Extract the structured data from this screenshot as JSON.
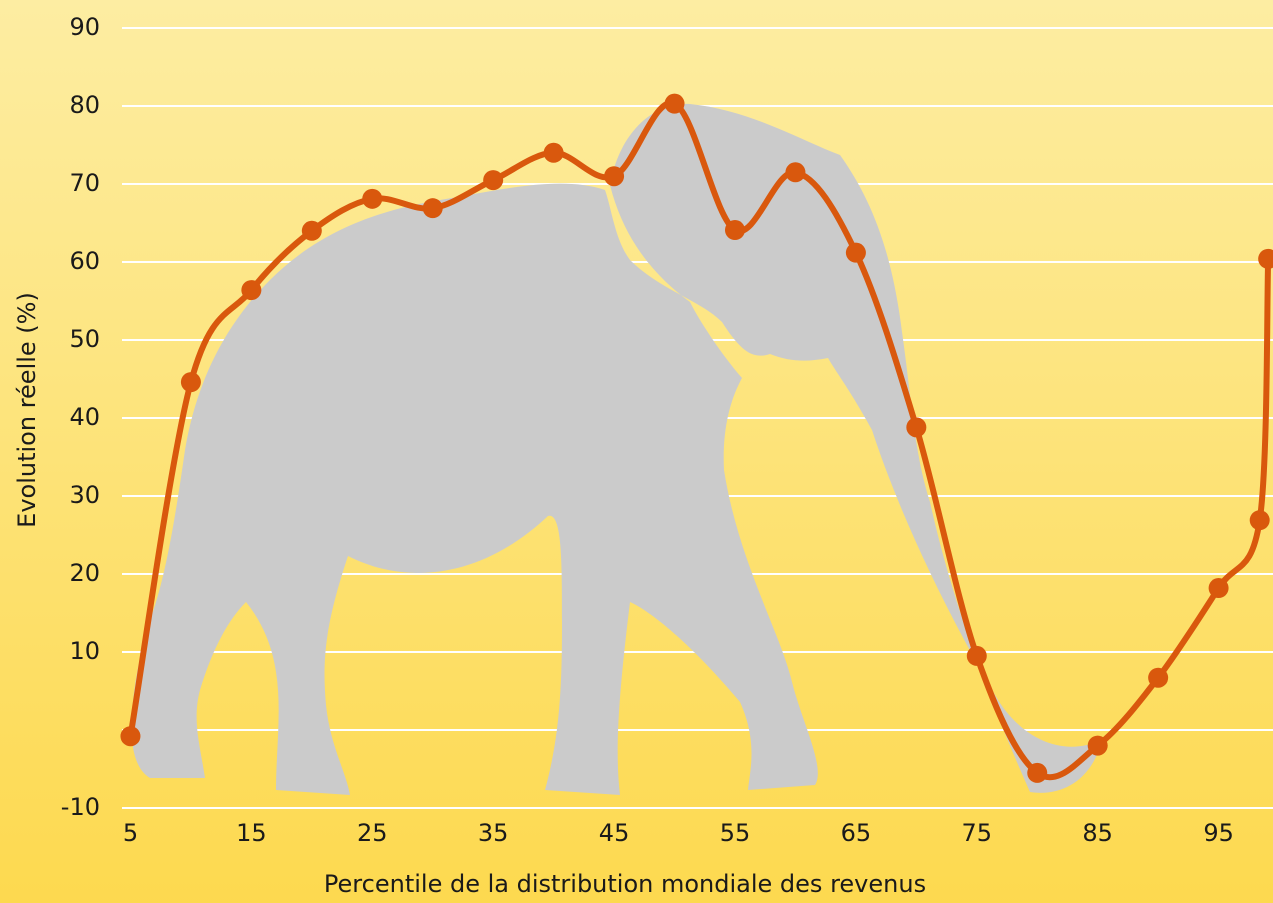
{
  "chart_data": {
    "type": "line",
    "xlabel": "Percentile de la distribution mondiale des revenus",
    "ylabel": "Evolution réelle (%)",
    "x": [
      5,
      10,
      15,
      20,
      25,
      30,
      35,
      40,
      45,
      50,
      55,
      60,
      65,
      70,
      75,
      80,
      85,
      90,
      95,
      98.4,
      99.1
    ],
    "series": [
      {
        "color": "#d9580d",
        "values": [
          -0.8,
          44.6,
          56.4,
          64,
          68.1,
          66.9,
          70.5,
          74,
          71,
          80.3,
          64.1,
          71.5,
          61.2,
          38.8,
          9.5,
          -5.5,
          -2,
          6.7,
          18.2,
          26.9,
          60.4
        ]
      }
    ],
    "xlim": [
      4.3,
      99.5
    ],
    "ylim": [
      -10,
      90
    ],
    "xticks": [
      5,
      15,
      25,
      35,
      45,
      55,
      65,
      75,
      85,
      95
    ],
    "yticks": [
      -10,
      10,
      20,
      30,
      40,
      50,
      60,
      70,
      80,
      90
    ],
    "yminorticks": [
      0
    ],
    "grid": true
  }
}
